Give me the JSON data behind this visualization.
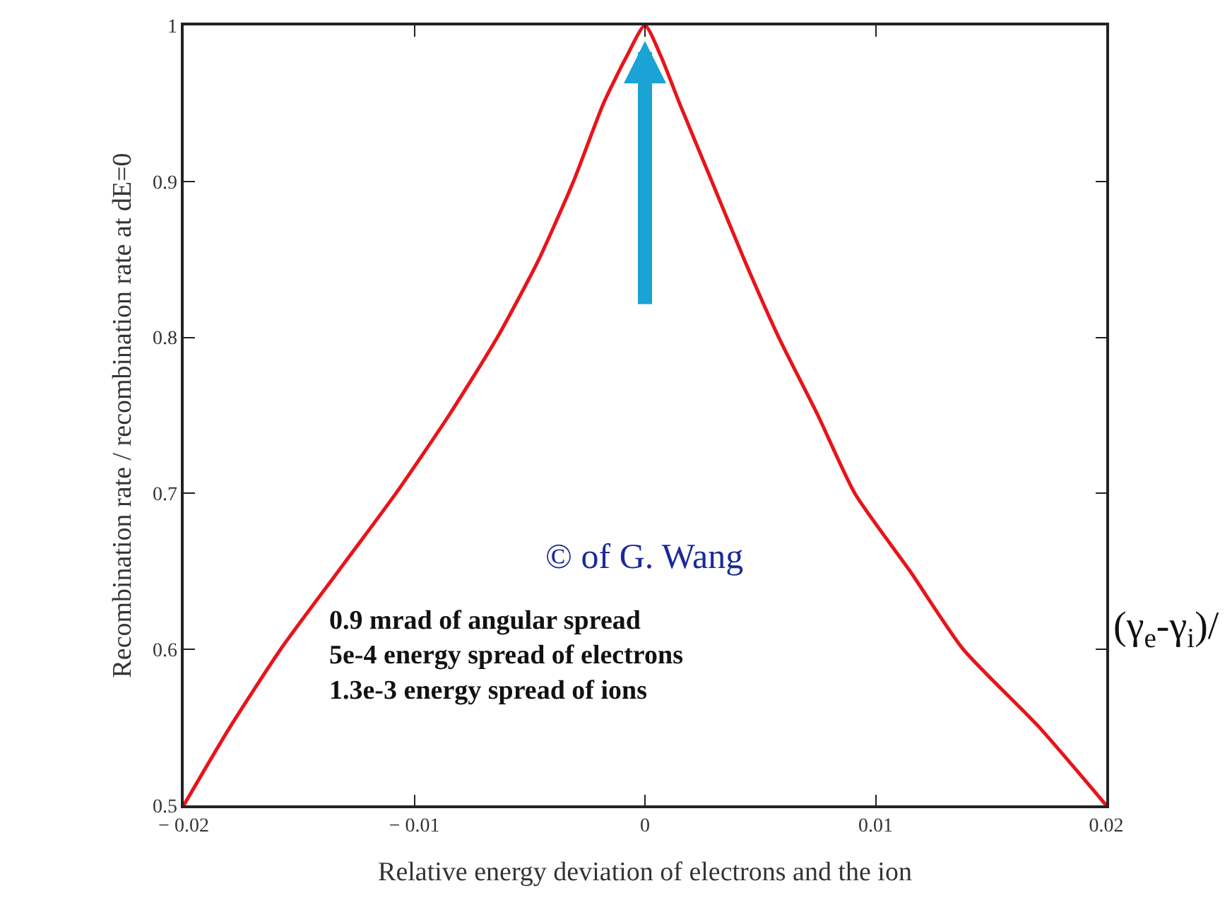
{
  "chart_data": {
    "type": "line",
    "xlabel": "Relative energy deviation of electrons and the ion",
    "ylabel": "Recombination rate / recombination rate at dE=0",
    "series": [
      {
        "color": "#e8141b",
        "x": [
          -0.02,
          -0.018,
          -0.0158,
          -0.0133,
          -0.0108,
          -0.0085,
          -0.0064,
          -0.0046,
          -0.0031,
          -0.0018,
          -0.0008,
          0,
          0.0007,
          0.0015,
          0.0029,
          0.0043,
          0.0058,
          0.0075,
          0.0091,
          0.0115,
          0.0138,
          0.0171,
          0.02
        ],
        "values": [
          0.5,
          0.55,
          0.6,
          0.65,
          0.7,
          0.75,
          0.8,
          0.85,
          0.9,
          0.95,
          0.98,
          1,
          0.98,
          0.95,
          0.9,
          0.85,
          0.8,
          0.75,
          0.7,
          0.65,
          0.6,
          0.55,
          0.5
        ]
      }
    ],
    "xlim": [
      -0.02,
      0.02
    ],
    "xticks": [
      {
        "value": -0.02,
        "label": "− 0.02"
      },
      {
        "value": -0.01,
        "label": "− 0.01"
      },
      0,
      0.01,
      0.02
    ],
    "ylim": [
      0.5,
      1
    ],
    "yticks": [
      0.5,
      0.6,
      0.7,
      0.8,
      0.9,
      1
    ],
    "legend": false,
    "marker": "none",
    "line_style": "solid",
    "annotations": [
      "© of G. Wang",
      "0.9 mrad of angular spread\n5e-4 energy spread of electrons\n1.3e-3 energy spread of ions",
      "(γ$_{e}$-γ$_{i}$)/"
    ]
  }
}
